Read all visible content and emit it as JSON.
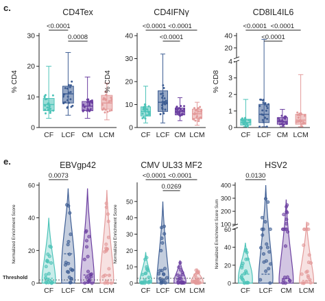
{
  "figure": {
    "panel_c_label": "c.",
    "panel_e_label": "e.",
    "threshold_label": "Threshold",
    "colors": {
      "CF": "#4cc3b8",
      "LCF": "#3d5d93",
      "CM": "#6b3fa0",
      "LCM": "#e39a9a",
      "axis": "#222222",
      "text": "#222222"
    }
  },
  "chart_data": [
    {
      "type": "box",
      "title": "CD4Tex",
      "ylabel": "% CD4",
      "ylim": [
        0,
        30
      ],
      "yticks": [
        "0",
        "10",
        "20",
        "30"
      ],
      "categories": [
        "CF",
        "LCF",
        "CM",
        "LCM"
      ],
      "series": [
        {
          "values": {
            "min": 3,
            "q1": 5.5,
            "median": 7.5,
            "q3": 9.5,
            "max": 20
          }
        },
        {
          "values": {
            "min": 4,
            "q1": 8,
            "median": 11,
            "q3": 13.5,
            "max": 24.5
          }
        },
        {
          "values": {
            "min": 3,
            "q1": 5.5,
            "median": 7,
            "q3": 8.5,
            "max": 16.5
          }
        },
        {
          "values": {
            "min": 2.5,
            "q1": 6,
            "median": 8,
            "q3": 10.5,
            "max": 14.5
          }
        }
      ],
      "annotations": [
        {
          "text": "<0.0001",
          "from": "CF",
          "to": "LCF"
        },
        {
          "text": "0.0008",
          "from": "LCF",
          "to": "CM"
        }
      ]
    },
    {
      "type": "box",
      "title": "CD4IFNγ",
      "ylabel": "% CD4",
      "ylim": [
        0,
        40
      ],
      "yticks": [
        "0",
        "10",
        "20",
        "30",
        "40"
      ],
      "categories": [
        "CF",
        "LCF",
        "CM",
        "LCM"
      ],
      "series": [
        {
          "values": {
            "min": 2,
            "q1": 5,
            "median": 7,
            "q3": 9,
            "max": 18
          }
        },
        {
          "values": {
            "min": 2,
            "q1": 7,
            "median": 11,
            "q3": 16,
            "max": 32
          }
        },
        {
          "values": {
            "min": 3,
            "q1": 5.5,
            "median": 7,
            "q3": 8.5,
            "max": 13
          }
        },
        {
          "values": {
            "min": 1,
            "q1": 4,
            "median": 6,
            "q3": 8,
            "max": 11
          }
        }
      ],
      "annotations": [
        {
          "text": "<0.0001",
          "from": "CF",
          "to": "LCF"
        },
        {
          "text": "<0.0001",
          "from": "LCF",
          "to": "CM"
        },
        {
          "text": "<0.0001",
          "from": "LCF",
          "to": "LCM"
        }
      ]
    },
    {
      "type": "box",
      "title": "CD8IL4IL6",
      "ylabel": "% CD8",
      "ylim": [
        0,
        40
      ],
      "yticks": [
        "0",
        "1",
        "2",
        "3",
        "4",
        "20",
        "40"
      ],
      "categories": [
        "CF",
        "LCF",
        "CM",
        "LCM"
      ],
      "series": [
        {
          "values": {
            "min": 0.05,
            "q1": 0.15,
            "median": 0.3,
            "q3": 0.5,
            "max": 1.7
          }
        },
        {
          "values": {
            "min": 0.05,
            "q1": 0.3,
            "median": 0.8,
            "q3": 1.4,
            "max": 34
          }
        },
        {
          "values": {
            "min": 0.05,
            "q1": 0.2,
            "median": 0.35,
            "q3": 0.6,
            "max": 1.1
          }
        },
        {
          "values": {
            "min": 0.05,
            "q1": 0.2,
            "median": 0.45,
            "q3": 0.8,
            "max": 3.2
          }
        }
      ],
      "annotations": [
        {
          "text": "<0.0001",
          "from": "CF",
          "to": "LCF"
        },
        {
          "text": "<0.0001",
          "from": "LCF",
          "to": "CM"
        },
        {
          "text": "<0.0001",
          "from": "LCF",
          "to": "LCM"
        }
      ]
    },
    {
      "type": "violin",
      "title": "EBVgp42",
      "ylabel": "Normalized Enrichment Score",
      "ylim": [
        0,
        60
      ],
      "yticks": [
        "0",
        "20",
        "40",
        "60"
      ],
      "categories": [
        "CF",
        "LCF",
        "CM",
        "LCM"
      ],
      "series": [
        {
          "values": {
            "min": 0,
            "median": 3,
            "max": 40
          }
        },
        {
          "values": {
            "min": 0,
            "median": 18,
            "max": 58
          }
        },
        {
          "values": {
            "min": 0,
            "median": 5,
            "max": 58
          }
        },
        {
          "values": {
            "min": 0,
            "median": 5,
            "max": 57
          }
        }
      ],
      "annotations": [
        {
          "text": "0.0073",
          "from": "CF",
          "to": "LCF"
        }
      ]
    },
    {
      "type": "violin",
      "title": "CMV UL33 MF2",
      "ylabel": "Normalized Enrichment Score",
      "ylim": [
        0,
        60
      ],
      "yticks": [
        "0",
        "10",
        "20",
        "30",
        "40",
        "50"
      ],
      "categories": [
        "CF",
        "LCF",
        "CM",
        "LCM"
      ],
      "series": [
        {
          "values": {
            "min": 0,
            "median": 1,
            "max": 19
          }
        },
        {
          "values": {
            "min": 0,
            "median": 2,
            "max": 50
          }
        },
        {
          "values": {
            "min": 0,
            "median": 1,
            "max": 14
          }
        },
        {
          "values": {
            "min": 0,
            "median": 0.5,
            "max": 9
          }
        }
      ],
      "annotations": [
        {
          "text": "<0.0001",
          "from": "CF",
          "to": "LCF"
        },
        {
          "text": "0.0269",
          "from": "LCF",
          "to": "CM"
        },
        {
          "text": "<0.0001",
          "from": "LCF",
          "to": "LCM"
        }
      ]
    },
    {
      "type": "violin",
      "title": "HSV2",
      "ylabel": "Normalized Enrichment Score Sum",
      "ylim": [
        0,
        400
      ],
      "yticks": [
        "0",
        "20",
        "40",
        "60",
        "100",
        "200",
        "300",
        "400"
      ],
      "categories": [
        "CF",
        "LCF",
        "CM",
        "LCM"
      ],
      "series": [
        {
          "values": {
            "min": 0,
            "median": 10,
            "max": 45
          }
        },
        {
          "values": {
            "min": 0,
            "median": 10,
            "max": 400
          }
        },
        {
          "values": {
            "min": 0,
            "median": 5,
            "max": 290
          }
        },
        {
          "values": {
            "min": 0,
            "median": 3,
            "max": 120
          }
        }
      ],
      "annotations": [
        {
          "text": "0.0130",
          "from": "CF",
          "to": "LCF"
        }
      ]
    }
  ]
}
